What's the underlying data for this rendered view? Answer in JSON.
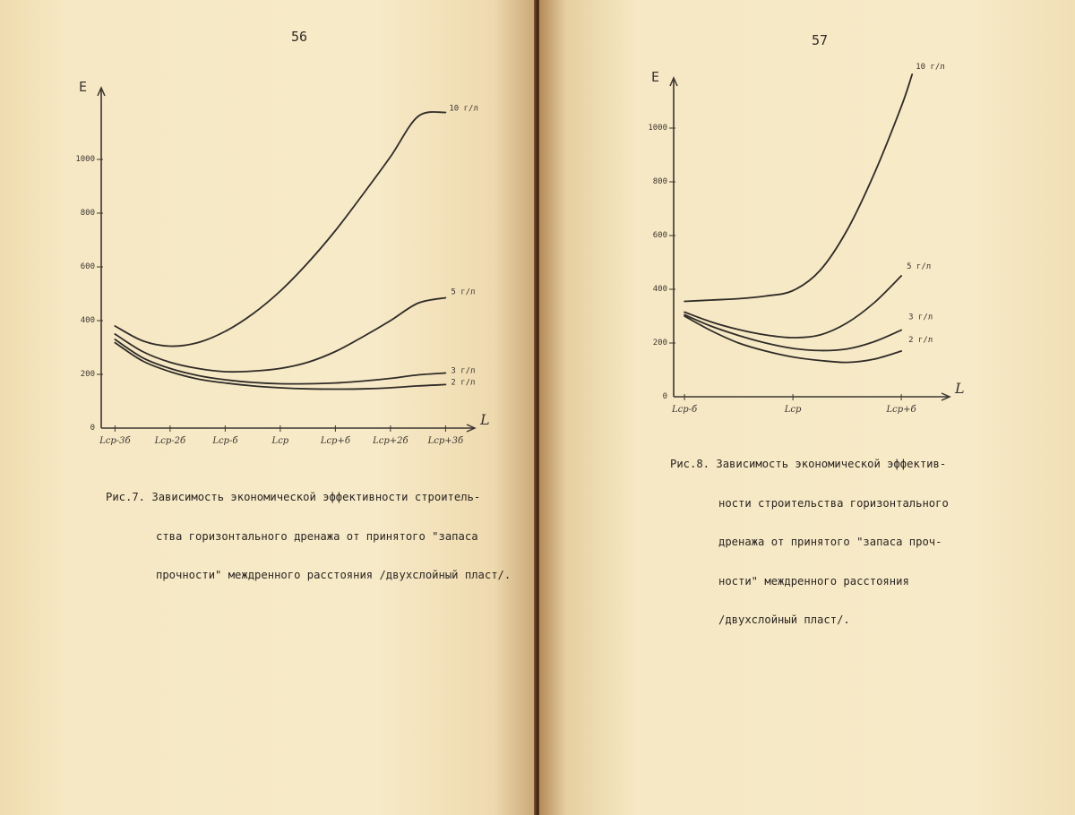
{
  "left_page": {
    "page_number": "56",
    "caption_lines": [
      "Рис.7. Зависимость экономической эффективности строитель-",
      "ства горизонтального дренажа от принятого \"запаса",
      "прочности\" междренного расстояния /двухслойный пласт/."
    ]
  },
  "right_page": {
    "page_number": "57",
    "caption_lines": [
      "Рис.8. Зависимость экономической эффектив-",
      "ности строительства горизонтального",
      "дренажа от принятого \"запаса проч-",
      "ности\" междренного расстояния",
      "/двухслойный пласт/."
    ]
  },
  "chart_data": [
    {
      "type": "line",
      "figure": "Рис.7",
      "xlabel": "L",
      "ylabel": "E",
      "x_tick_labels": [
        "Lср-3б",
        "Lср-2б",
        "Lср-б",
        "Lср",
        "Lср+б",
        "Lср+2б",
        "Lср+3б"
      ],
      "y_tick_labels": [
        "0",
        "200",
        "400",
        "600",
        "800",
        "1000"
      ],
      "ylim": [
        0,
        1200
      ],
      "series": [
        {
          "name": "10 г/л",
          "x": [
            -3,
            -2.5,
            -2,
            -1.5,
            -1,
            -0.5,
            0,
            0.5,
            1,
            1.5,
            2,
            2.5,
            3
          ],
          "y": [
            380,
            325,
            305,
            318,
            360,
            425,
            510,
            615,
            735,
            870,
            1010,
            1160,
            1175
          ]
        },
        {
          "name": "5 г/л",
          "x": [
            -3,
            -2.5,
            -2,
            -1.5,
            -1,
            -0.5,
            0,
            0.5,
            1,
            1.5,
            2,
            2.5,
            3
          ],
          "y": [
            350,
            285,
            245,
            222,
            210,
            212,
            222,
            245,
            285,
            340,
            400,
            465,
            485
          ]
        },
        {
          "name": "3 г/л",
          "x": [
            -3,
            -2.5,
            -2,
            -1.5,
            -1,
            -0.5,
            0,
            0.5,
            1,
            1.5,
            2,
            2.5,
            3
          ],
          "y": [
            330,
            262,
            222,
            196,
            180,
            170,
            165,
            165,
            168,
            175,
            185,
            198,
            205
          ]
        },
        {
          "name": "2 г/л",
          "x": [
            -3,
            -2.5,
            -2,
            -1.5,
            -1,
            -0.5,
            0,
            0.5,
            1,
            1.5,
            2,
            2.5,
            3
          ],
          "y": [
            318,
            250,
            210,
            183,
            168,
            157,
            150,
            146,
            145,
            146,
            150,
            157,
            162
          ]
        }
      ]
    },
    {
      "type": "line",
      "figure": "Рис.8",
      "xlabel": "L",
      "ylabel": "E",
      "x_tick_labels": [
        "Lср-б",
        "Lср",
        "Lср+б"
      ],
      "y_tick_labels": [
        "0",
        "200",
        "400",
        "600",
        "800",
        "1000"
      ],
      "ylim": [
        0,
        1200
      ],
      "series": [
        {
          "name": "10 г/л",
          "x": [
            -1,
            -0.75,
            -0.5,
            -0.25,
            0,
            0.25,
            0.5,
            0.75,
            1,
            1.1
          ],
          "y": [
            355,
            360,
            365,
            375,
            395,
            470,
            620,
            830,
            1080,
            1200
          ]
        },
        {
          "name": "5 г/л",
          "x": [
            -1,
            -0.75,
            -0.5,
            -0.25,
            0,
            0.25,
            0.5,
            0.75,
            1
          ],
          "y": [
            315,
            278,
            250,
            230,
            220,
            230,
            275,
            350,
            450
          ]
        },
        {
          "name": "3 г/л",
          "x": [
            -1,
            -0.75,
            -0.5,
            -0.25,
            0,
            0.25,
            0.5,
            0.75,
            1
          ],
          "y": [
            305,
            262,
            228,
            200,
            180,
            172,
            178,
            205,
            248
          ]
        },
        {
          "name": "2 г/л",
          "x": [
            -1,
            -0.75,
            -0.5,
            -0.25,
            0,
            0.25,
            0.5,
            0.75,
            1
          ],
          "y": [
            300,
            245,
            200,
            170,
            148,
            135,
            128,
            140,
            170
          ]
        }
      ]
    }
  ]
}
